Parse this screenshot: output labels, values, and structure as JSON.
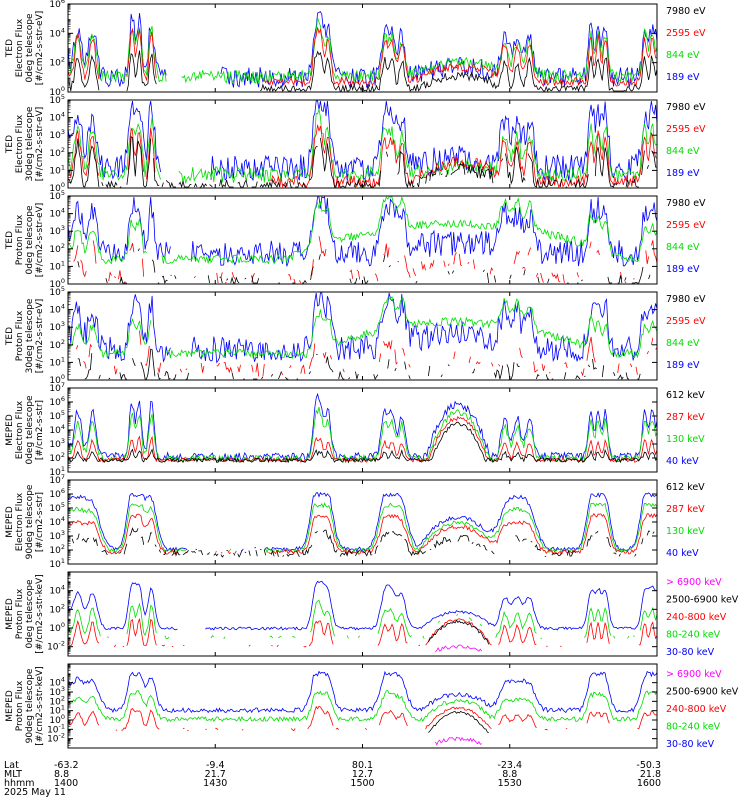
{
  "colors": {
    "blue": "#0000ff",
    "green": "#00dd00",
    "red": "#ff0000",
    "black": "#000000",
    "magenta": "#ff00ff"
  },
  "chart_data": [
    {
      "type": "line",
      "ylabel_lines": [
        "TED",
        "Electron Flux",
        "0deg telescope",
        "[#/cm2-s-str-eV]"
      ],
      "scale": "log",
      "ylim_exp": [
        0,
        6
      ],
      "ytick_exps": [
        0,
        2,
        4,
        6
      ],
      "legend": [
        {
          "label": "7980 eV",
          "color": "black"
        },
        {
          "label": "2595 eV",
          "color": "red"
        },
        {
          "label": "844 eV",
          "color": "green"
        },
        {
          "label": "189 eV",
          "color": "blue"
        }
      ]
    },
    {
      "type": "line",
      "ylabel_lines": [
        "TED",
        "Electron Flux",
        "30deg telescope",
        "[#/cm2-s-str-eV]"
      ],
      "scale": "log",
      "ylim_exp": [
        0,
        5
      ],
      "ytick_exps": [
        0,
        1,
        2,
        3,
        4,
        5
      ],
      "legend": [
        {
          "label": "7980 eV",
          "color": "black"
        },
        {
          "label": "2595 eV",
          "color": "red"
        },
        {
          "label": "844 eV",
          "color": "green"
        },
        {
          "label": "189 eV",
          "color": "blue"
        }
      ]
    },
    {
      "type": "line",
      "ylabel_lines": [
        "TED",
        "Proton Flux",
        "0deg telescope",
        "[#/cm2-s-str-eV]"
      ],
      "scale": "log",
      "ylim_exp": [
        0,
        5
      ],
      "ytick_exps": [
        0,
        1,
        2,
        3,
        4,
        5
      ],
      "legend": [
        {
          "label": "7980 eV",
          "color": "black"
        },
        {
          "label": "2595 eV",
          "color": "red"
        },
        {
          "label": "844 eV",
          "color": "green"
        },
        {
          "label": "189 eV",
          "color": "blue"
        }
      ]
    },
    {
      "type": "line",
      "ylabel_lines": [
        "TED",
        "Proton Flux",
        "30deg telescope",
        "[#/cm2-s-str-eV]"
      ],
      "scale": "log",
      "ylim_exp": [
        0,
        5
      ],
      "ytick_exps": [
        0,
        1,
        2,
        3,
        4,
        5
      ],
      "legend": [
        {
          "label": "7980 eV",
          "color": "black"
        },
        {
          "label": "2595 eV",
          "color": "red"
        },
        {
          "label": "844 eV",
          "color": "green"
        },
        {
          "label": "189 eV",
          "color": "blue"
        }
      ]
    },
    {
      "type": "line",
      "ylabel_lines": [
        "MEPED",
        "Electron Flux",
        "0deg telescope",
        "[#/cm2-s-str]"
      ],
      "scale": "log",
      "ylim_exp": [
        1,
        7
      ],
      "ytick_exps": [
        1,
        2,
        3,
        4,
        5,
        6,
        7
      ],
      "legend": [
        {
          "label": "612 keV",
          "color": "black"
        },
        {
          "label": "287 keV",
          "color": "red"
        },
        {
          "label": "130 keV",
          "color": "green"
        },
        {
          "label": "40 keV",
          "color": "blue"
        }
      ]
    },
    {
      "type": "line",
      "ylabel_lines": [
        "MEPED",
        "Electron Flux",
        "90deg telescope",
        "[#/cm2-s-str]"
      ],
      "scale": "log",
      "ylim_exp": [
        1,
        7
      ],
      "ytick_exps": [
        1,
        2,
        3,
        4,
        5,
        6,
        7
      ],
      "legend": [
        {
          "label": "612 keV",
          "color": "black"
        },
        {
          "label": "287 keV",
          "color": "red"
        },
        {
          "label": "130 keV",
          "color": "green"
        },
        {
          "label": "40 keV",
          "color": "blue"
        }
      ]
    },
    {
      "type": "line",
      "ylabel_lines": [
        "MEPED",
        "Proton Flux",
        "0deg telescope",
        "[#/cm2-s-str-keV]"
      ],
      "scale": "log",
      "ylim_exp": [
        -3,
        6
      ],
      "ytick_exps": [
        -2,
        0,
        2,
        4
      ],
      "legend": [
        {
          "label": "> 6900 keV",
          "color": "magenta"
        },
        {
          "label": "2500-6900 keV",
          "color": "black"
        },
        {
          "label": "240-800 keV",
          "color": "red"
        },
        {
          "label": "80-240 keV",
          "color": "green"
        },
        {
          "label": "30-80 keV",
          "color": "blue"
        }
      ]
    },
    {
      "type": "line",
      "ylabel_lines": [
        "MEPED",
        "Proton Flux",
        "90deg telescope",
        "[#/cm2-s-str-keV]"
      ],
      "scale": "log",
      "ylim_exp": [
        -3,
        6
      ],
      "ytick_exps": [
        -2,
        -1,
        0,
        1,
        2,
        3,
        4
      ],
      "legend": [
        {
          "label": "> 6900 keV",
          "color": "magenta"
        },
        {
          "label": "2500-6900 keV",
          "color": "black"
        },
        {
          "label": "240-800 keV",
          "color": "red"
        },
        {
          "label": "80-240 keV",
          "color": "green"
        },
        {
          "label": "30-80 keV",
          "color": "blue"
        }
      ]
    }
  ],
  "x_axis": {
    "row_labels": [
      "Lat",
      "MLT",
      "hhmm",
      "2025 May 11"
    ],
    "ticks": [
      {
        "lat": "-63.2",
        "mlt": "8.8",
        "hhmm": "1400"
      },
      {
        "lat": "-9.4",
        "mlt": "21.7",
        "hhmm": "1430"
      },
      {
        "lat": "80.1",
        "mlt": "12.7",
        "hhmm": "1500"
      },
      {
        "lat": "-23.4",
        "mlt": "8.8",
        "hhmm": "1530"
      },
      {
        "lat": "-50.3",
        "mlt": "21.8",
        "hhmm": "1600"
      }
    ],
    "xlim_min": [
      0,
      240
    ]
  }
}
